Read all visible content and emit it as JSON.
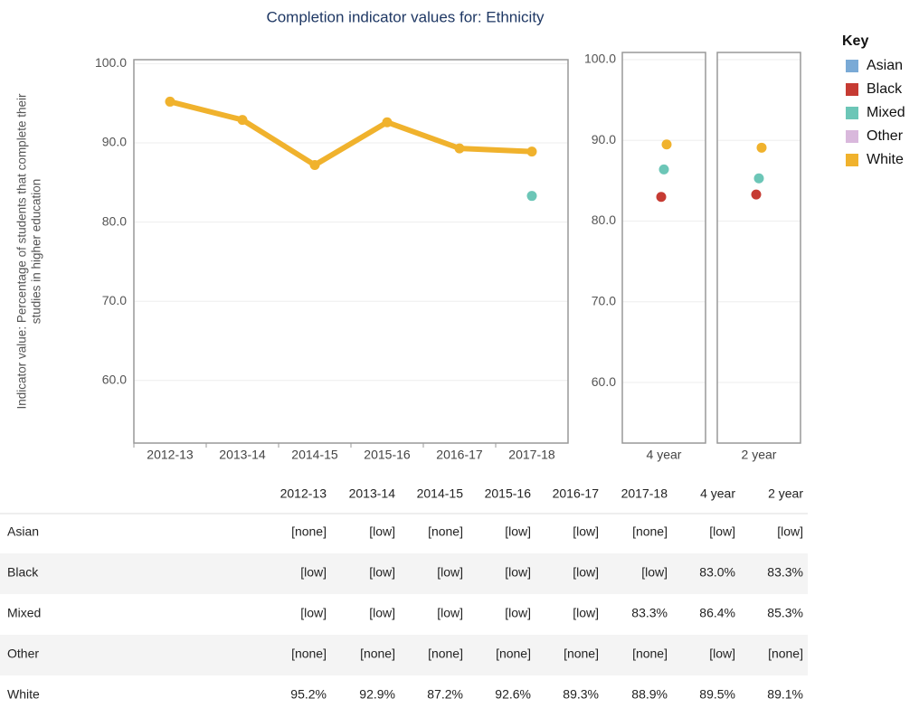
{
  "chart_data": [
    {
      "type": "line",
      "title": "Completion indicator values for: Ethnicity",
      "y_label": [
        "Indicator value: Percentage of students that complete their",
        "studies in higher education"
      ],
      "legend_title": "Key",
      "categories": [
        "2012-13",
        "2013-14",
        "2014-15",
        "2015-16",
        "2016-17",
        "2017-18"
      ],
      "series": [
        {
          "name": "Asian",
          "color": "#7aaad6",
          "values": [
            null,
            null,
            null,
            null,
            null,
            null
          ]
        },
        {
          "name": "Black",
          "color": "#c63b33",
          "values": [
            null,
            null,
            null,
            null,
            null,
            null
          ]
        },
        {
          "name": "Mixed",
          "color": "#6cc6b7",
          "values": [
            null,
            null,
            null,
            null,
            null,
            83.3
          ]
        },
        {
          "name": "Other",
          "color": "#d9b8dc",
          "values": [
            null,
            null,
            null,
            null,
            null,
            null
          ]
        },
        {
          "name": "White",
          "color": "#f0b22d",
          "values": [
            95.2,
            92.9,
            87.2,
            92.6,
            89.3,
            88.9
          ]
        }
      ],
      "ylim": [
        52.1,
        100.5
      ],
      "yticks": [
        {
          "value": 100,
          "label": "100.0"
        },
        {
          "value": 90,
          "label": "90.0"
        },
        {
          "value": 80,
          "label": "80.0"
        },
        {
          "value": 70,
          "label": "70.0"
        },
        {
          "value": 60,
          "label": "60.0"
        }
      ],
      "grid": true
    },
    {
      "type": "dot",
      "categories": [
        "4 year",
        "2 year"
      ],
      "series": [
        {
          "color": "#c63b33",
          "values": [
            83.0,
            83.3
          ]
        },
        {
          "color": "#6cc6b7",
          "values": [
            86.4,
            85.3
          ]
        },
        {
          "color": "#f0b22d",
          "values": [
            89.5,
            89.1
          ]
        }
      ],
      "ylim": [
        52.5,
        100.9
      ],
      "yticks": [
        {
          "value": 100,
          "label": "100.0"
        },
        {
          "value": 90,
          "label": "90.0"
        },
        {
          "value": 80,
          "label": "80.0"
        },
        {
          "value": 70,
          "label": "70.0"
        },
        {
          "value": 60,
          "label": "60.0"
        }
      ],
      "grid": true
    }
  ],
  "table": {
    "columns": [
      "2012-13",
      "2013-14",
      "2014-15",
      "2015-16",
      "2016-17",
      "2017-18",
      "4 year",
      "2 year"
    ],
    "rows": [
      {
        "label": "Asian",
        "cells": [
          "[none]",
          "[low]",
          "[none]",
          "[low]",
          "[low]",
          "[none]",
          "[low]",
          "[low]"
        ]
      },
      {
        "label": "Black",
        "cells": [
          "[low]",
          "[low]",
          "[low]",
          "[low]",
          "[low]",
          "[low]",
          "83.0%",
          "83.3%"
        ]
      },
      {
        "label": "Mixed",
        "cells": [
          "[low]",
          "[low]",
          "[low]",
          "[low]",
          "[low]",
          "83.3%",
          "86.4%",
          "85.3%"
        ]
      },
      {
        "label": "Other",
        "cells": [
          "[none]",
          "[none]",
          "[none]",
          "[none]",
          "[none]",
          "[none]",
          "[low]",
          "[none]"
        ]
      },
      {
        "label": "White",
        "cells": [
          "95.2%",
          "92.9%",
          "87.2%",
          "92.6%",
          "89.3%",
          "88.9%",
          "89.5%",
          "89.1%"
        ]
      }
    ]
  }
}
